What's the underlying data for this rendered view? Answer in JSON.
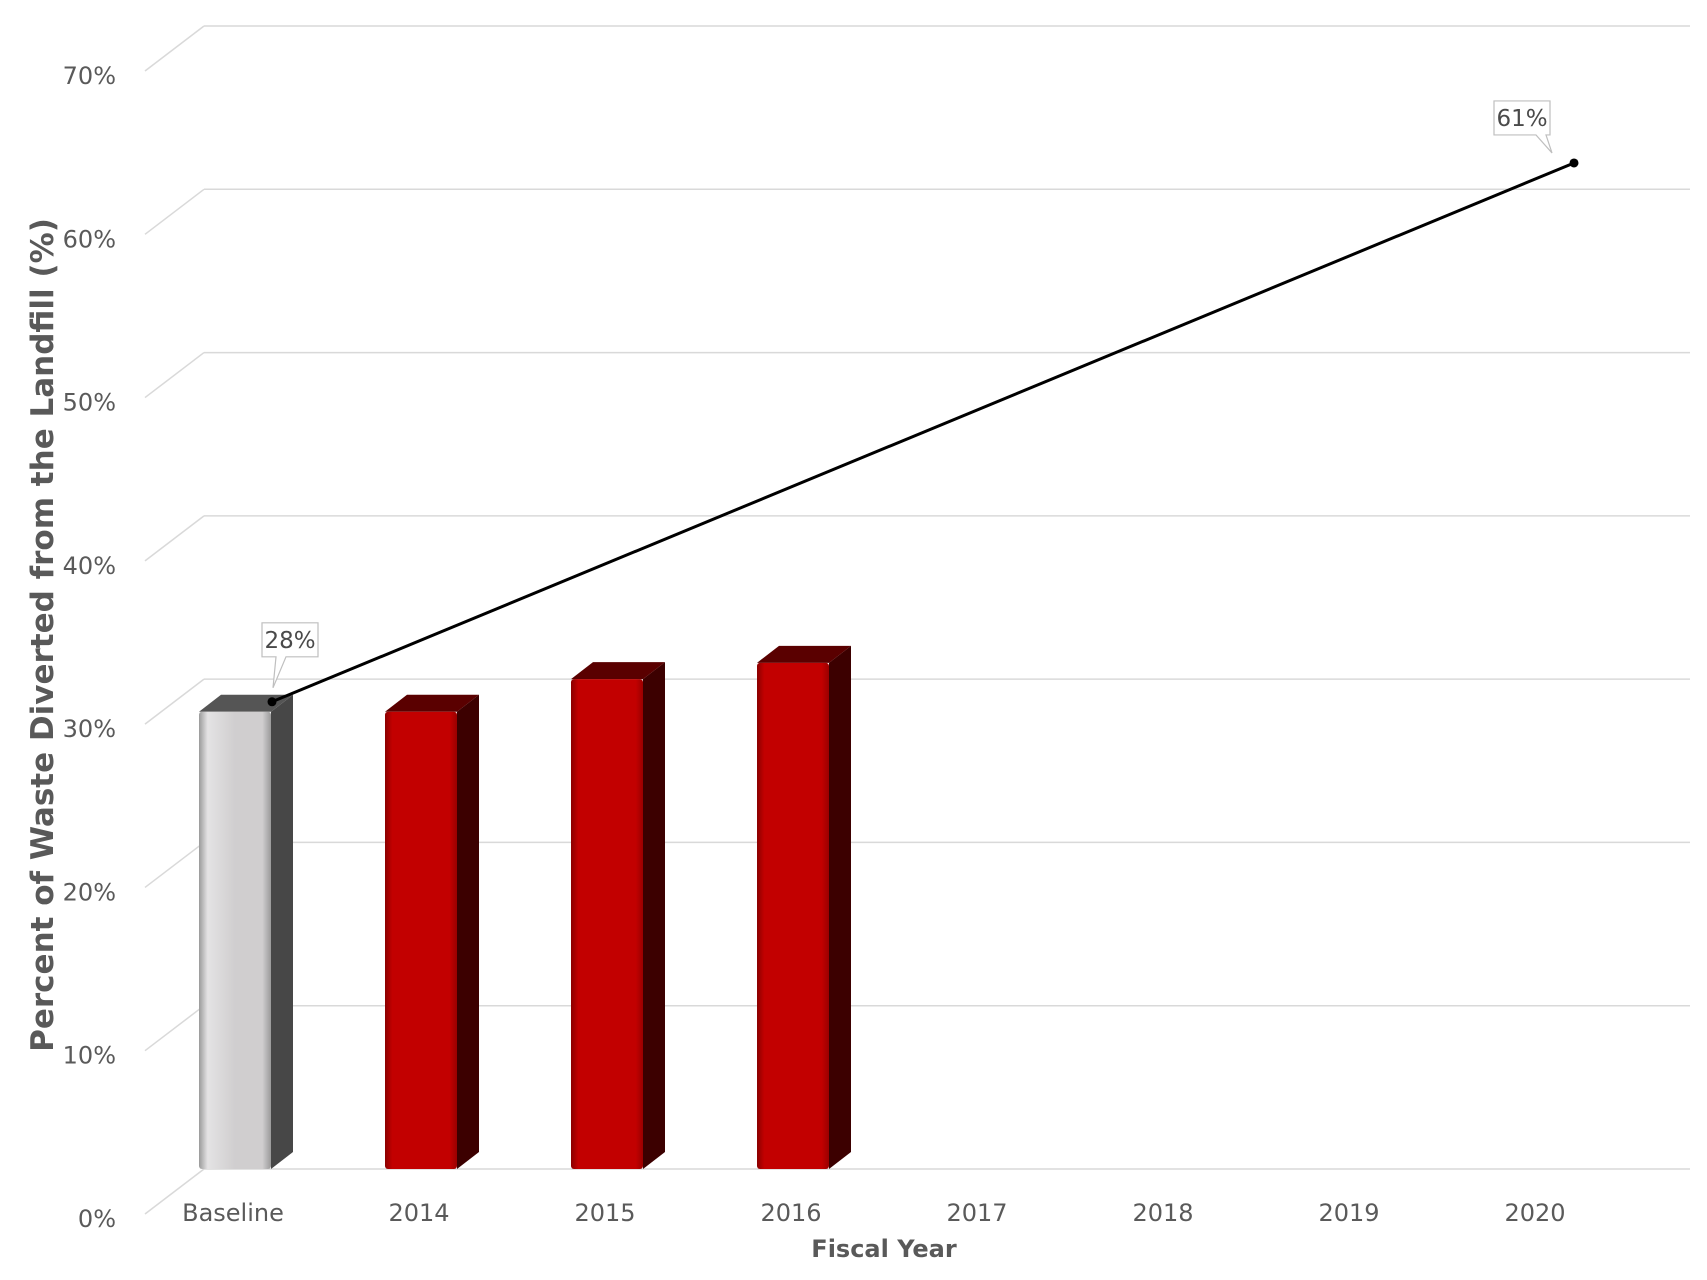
{
  "chart_data": {
    "type": "bar",
    "title": "",
    "xlabel": "Fiscal Year",
    "ylabel": "Percent of Waste Diverted from the Landfill (%)",
    "ylim": [
      0,
      70
    ],
    "yticks": [
      "0%",
      "10%",
      "20%",
      "30%",
      "40%",
      "50%",
      "60%",
      "70%"
    ],
    "categories": [
      "Baseline",
      "2014",
      "2015",
      "2016",
      "2017",
      "2018",
      "2019",
      "2020"
    ],
    "series": [
      {
        "type": "bar",
        "values": [
          28,
          28,
          30,
          31,
          null,
          null,
          null,
          null
        ],
        "colors": [
          "#cfcdce",
          "#c00000",
          "#c00000",
          "#c00000"
        ]
      },
      {
        "type": "line",
        "points": [
          {
            "category": "Baseline",
            "value": 28
          },
          {
            "category": "2020",
            "value": 61
          }
        ],
        "color": "#000000"
      }
    ],
    "annotations": [
      {
        "category": "Baseline",
        "value": 28,
        "text": "28%"
      },
      {
        "category": "2020",
        "value": 61,
        "text": "61%"
      }
    ],
    "grid": true,
    "legend": "none"
  }
}
